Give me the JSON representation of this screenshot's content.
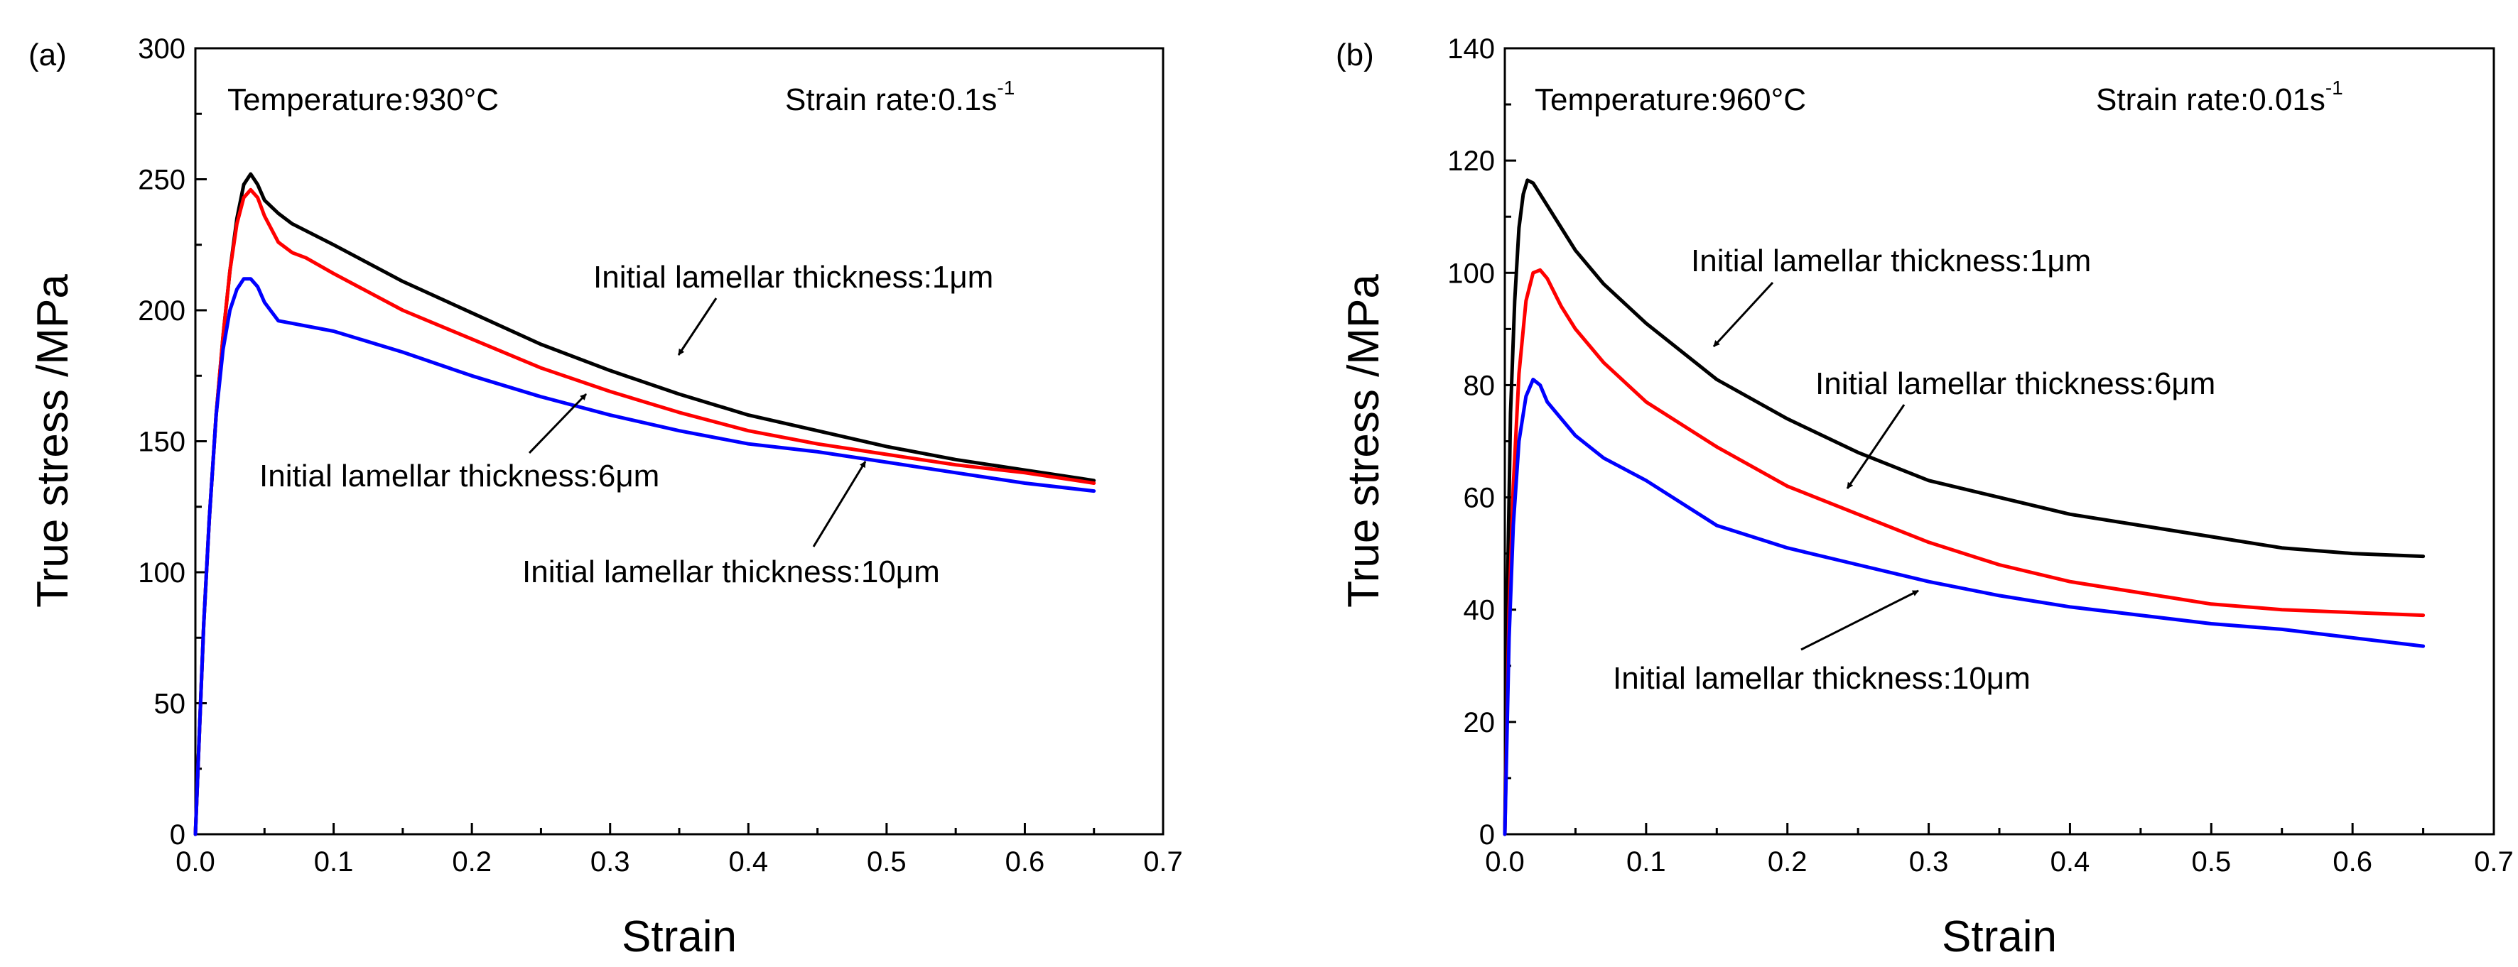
{
  "chart_data": [
    {
      "type": "line",
      "panel_label": "(a)",
      "title": "",
      "xlabel": "Strain",
      "ylabel": "True stress /MPa",
      "xlim": [
        0,
        0.7
      ],
      "ylim": [
        0,
        300
      ],
      "xticks": [
        "0.0",
        "0.1",
        "0.2",
        "0.3",
        "0.4",
        "0.5",
        "0.6",
        "0.7"
      ],
      "yticks": [
        "0",
        "50",
        "100",
        "150",
        "200",
        "250",
        "300"
      ],
      "condition_temperature": "Temperature:930°C",
      "condition_rate": "Strain rate:0.1s",
      "condition_rate_exp": "-1",
      "series": [
        {
          "name": "Initial lamellar thickness:1μm",
          "color": "#000000",
          "x": [
            0,
            0.003,
            0.006,
            0.01,
            0.015,
            0.02,
            0.025,
            0.03,
            0.035,
            0.04,
            0.045,
            0.05,
            0.06,
            0.07,
            0.1,
            0.15,
            0.2,
            0.25,
            0.3,
            0.35,
            0.4,
            0.45,
            0.5,
            0.55,
            0.6,
            0.65
          ],
          "y": [
            0,
            40,
            80,
            120,
            160,
            190,
            215,
            235,
            248,
            252,
            248,
            242,
            237,
            233,
            225,
            211,
            199,
            187,
            177,
            168,
            160,
            154,
            148,
            143,
            139,
            135
          ]
        },
        {
          "name": "Initial lamellar thickness:6μm",
          "color": "#ff0000",
          "x": [
            0,
            0.003,
            0.006,
            0.01,
            0.015,
            0.02,
            0.025,
            0.03,
            0.035,
            0.04,
            0.045,
            0.05,
            0.06,
            0.07,
            0.08,
            0.1,
            0.15,
            0.2,
            0.25,
            0.3,
            0.35,
            0.4,
            0.45,
            0.5,
            0.55,
            0.6,
            0.65
          ],
          "y": [
            0,
            40,
            80,
            120,
            160,
            190,
            215,
            233,
            243,
            246,
            243,
            236,
            226,
            222,
            220,
            214,
            200,
            189,
            178,
            169,
            161,
            154,
            149,
            145,
            141,
            138,
            134
          ]
        },
        {
          "name": "Initial lamellar thickness:10μm",
          "color": "#0000ff",
          "x": [
            0,
            0.003,
            0.006,
            0.01,
            0.015,
            0.02,
            0.025,
            0.03,
            0.035,
            0.04,
            0.045,
            0.05,
            0.06,
            0.07,
            0.1,
            0.15,
            0.2,
            0.25,
            0.3,
            0.35,
            0.4,
            0.45,
            0.5,
            0.55,
            0.6,
            0.65
          ],
          "y": [
            0,
            40,
            80,
            120,
            160,
            185,
            200,
            208,
            212,
            212,
            209,
            203,
            196,
            195,
            192,
            184,
            175,
            167,
            160,
            154,
            149,
            146,
            142,
            138,
            134,
            131
          ]
        }
      ],
      "annotations": [
        {
          "text": "Initial lamellar thickness:1μm"
        },
        {
          "text": "Initial lamellar thickness:6μm"
        },
        {
          "text": "Initial lamellar thickness:10μm"
        }
      ]
    },
    {
      "type": "line",
      "panel_label": "(b)",
      "title": "",
      "xlabel": "Strain",
      "ylabel": "True stress /MPa",
      "xlim": [
        0,
        0.7
      ],
      "ylim": [
        0,
        140
      ],
      "xticks": [
        "0.0",
        "0.1",
        "0.2",
        "0.3",
        "0.4",
        "0.5",
        "0.6",
        "0.7"
      ],
      "yticks": [
        "0",
        "20",
        "40",
        "60",
        "80",
        "100",
        "120",
        "140"
      ],
      "condition_temperature": "Temperature:960°C",
      "condition_rate": "Strain rate:0.01s",
      "condition_rate_exp": "-1",
      "series": [
        {
          "name": "Initial lamellar thickness:1μm",
          "color": "#000000",
          "x": [
            0,
            0.002,
            0.004,
            0.007,
            0.01,
            0.013,
            0.016,
            0.02,
            0.025,
            0.03,
            0.04,
            0.05,
            0.07,
            0.1,
            0.15,
            0.2,
            0.25,
            0.3,
            0.35,
            0.4,
            0.45,
            0.5,
            0.55,
            0.6,
            0.65
          ],
          "y": [
            0,
            45,
            75,
            95,
            108,
            114,
            116.5,
            116,
            114,
            112,
            108,
            104,
            98,
            91,
            81,
            74,
            68,
            63,
            60,
            57,
            55,
            53,
            51,
            50,
            49.5
          ]
        },
        {
          "name": "Initial lamellar thickness:6μm",
          "color": "#ff0000",
          "x": [
            0,
            0.003,
            0.006,
            0.01,
            0.015,
            0.02,
            0.025,
            0.03,
            0.04,
            0.05,
            0.07,
            0.1,
            0.15,
            0.2,
            0.25,
            0.3,
            0.35,
            0.4,
            0.45,
            0.5,
            0.55,
            0.6,
            0.65
          ],
          "y": [
            0,
            40,
            62,
            82,
            95,
            100,
            100.5,
            99,
            94,
            90,
            84,
            77,
            69,
            62,
            57,
            52,
            48,
            45,
            43,
            41,
            40,
            39.5,
            39
          ]
        },
        {
          "name": "Initial lamellar thickness:10μm",
          "color": "#0000ff",
          "x": [
            0,
            0.003,
            0.006,
            0.01,
            0.015,
            0.02,
            0.025,
            0.03,
            0.04,
            0.05,
            0.07,
            0.1,
            0.15,
            0.2,
            0.25,
            0.3,
            0.35,
            0.4,
            0.45,
            0.5,
            0.55,
            0.6,
            0.65
          ],
          "y": [
            0,
            35,
            55,
            70,
            78,
            81,
            80,
            77,
            74,
            71,
            67,
            63,
            55,
            51,
            48,
            45,
            42.5,
            40.5,
            39,
            37.5,
            36.5,
            35,
            33.5
          ]
        }
      ],
      "annotations": [
        {
          "text": "Initial lamellar thickness:1μm"
        },
        {
          "text": "Initial lamellar thickness:6μm"
        },
        {
          "text": "Initial lamellar thickness:10μm"
        }
      ]
    }
  ]
}
